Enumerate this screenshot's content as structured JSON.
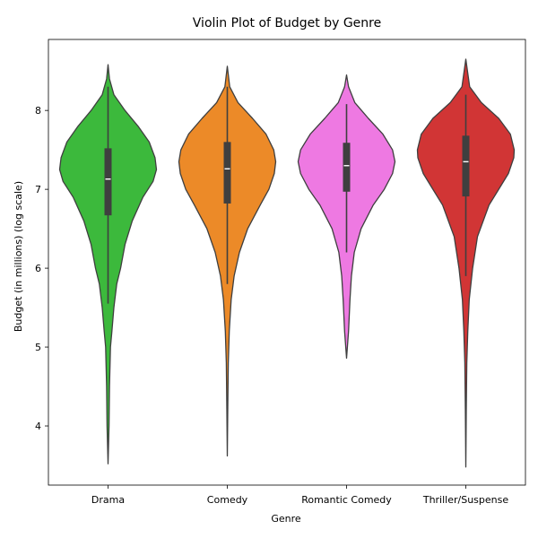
{
  "chart_data": {
    "type": "violin",
    "title": "Violin Plot of Budget by Genre",
    "xlabel": "Genre",
    "ylabel": "Budget (in millions) (log scale)",
    "ylim": [
      3.25,
      8.9
    ],
    "yticks": [
      4,
      5,
      6,
      7,
      8
    ],
    "grid": false,
    "categories": [
      "Drama",
      "Comedy",
      "Romantic Comedy",
      "Thriller/Suspense"
    ],
    "series": [
      {
        "name": "Drama",
        "color": "#3cb93c",
        "box": {
          "q1": 6.67,
          "median": 7.13,
          "q3": 7.52,
          "whisker_low": 5.55,
          "whisker_high": 8.3
        },
        "range": [
          3.52,
          8.58
        ],
        "density": [
          [
            3.52,
            0.0
          ],
          [
            4.0,
            0.02
          ],
          [
            4.5,
            0.03
          ],
          [
            5.0,
            0.05
          ],
          [
            5.2,
            0.08
          ],
          [
            5.5,
            0.12
          ],
          [
            5.8,
            0.18
          ],
          [
            6.0,
            0.26
          ],
          [
            6.3,
            0.35
          ],
          [
            6.6,
            0.5
          ],
          [
            6.9,
            0.72
          ],
          [
            7.1,
            0.93
          ],
          [
            7.25,
            1.0
          ],
          [
            7.4,
            0.97
          ],
          [
            7.6,
            0.85
          ],
          [
            7.8,
            0.62
          ],
          [
            8.0,
            0.35
          ],
          [
            8.2,
            0.12
          ],
          [
            8.4,
            0.03
          ],
          [
            8.58,
            0.0
          ]
        ]
      },
      {
        "name": "Comedy",
        "color": "#ec8a28",
        "box": {
          "q1": 6.82,
          "median": 7.26,
          "q3": 7.6,
          "whisker_low": 5.8,
          "whisker_high": 8.3
        },
        "range": [
          3.62,
          8.56
        ],
        "density": [
          [
            3.62,
            0.0
          ],
          [
            4.2,
            0.01
          ],
          [
            4.8,
            0.02
          ],
          [
            5.2,
            0.04
          ],
          [
            5.6,
            0.08
          ],
          [
            5.9,
            0.14
          ],
          [
            6.2,
            0.25
          ],
          [
            6.5,
            0.42
          ],
          [
            6.8,
            0.68
          ],
          [
            7.0,
            0.86
          ],
          [
            7.2,
            0.97
          ],
          [
            7.35,
            1.0
          ],
          [
            7.5,
            0.96
          ],
          [
            7.7,
            0.8
          ],
          [
            7.9,
            0.52
          ],
          [
            8.1,
            0.22
          ],
          [
            8.3,
            0.05
          ],
          [
            8.56,
            0.0
          ]
        ]
      },
      {
        "name": "Romantic Comedy",
        "color": "#ee79e2",
        "box": {
          "q1": 6.97,
          "median": 7.3,
          "q3": 7.59,
          "whisker_low": 6.2,
          "whisker_high": 8.08
        },
        "range": [
          4.86,
          8.45
        ],
        "density": [
          [
            4.86,
            0.0
          ],
          [
            5.2,
            0.04
          ],
          [
            5.6,
            0.07
          ],
          [
            5.9,
            0.1
          ],
          [
            6.2,
            0.16
          ],
          [
            6.5,
            0.3
          ],
          [
            6.8,
            0.55
          ],
          [
            7.0,
            0.78
          ],
          [
            7.2,
            0.95
          ],
          [
            7.35,
            1.0
          ],
          [
            7.5,
            0.95
          ],
          [
            7.7,
            0.75
          ],
          [
            7.9,
            0.45
          ],
          [
            8.1,
            0.17
          ],
          [
            8.3,
            0.04
          ],
          [
            8.45,
            0.0
          ]
        ]
      },
      {
        "name": "Thriller/Suspense",
        "color": "#d13535",
        "box": {
          "q1": 6.91,
          "median": 7.35,
          "q3": 7.68,
          "whisker_low": 5.9,
          "whisker_high": 8.2
        },
        "range": [
          3.48,
          8.65
        ],
        "density": [
          [
            3.48,
            0.0
          ],
          [
            4.2,
            0.01
          ],
          [
            4.8,
            0.02
          ],
          [
            5.2,
            0.04
          ],
          [
            5.6,
            0.07
          ],
          [
            6.0,
            0.14
          ],
          [
            6.4,
            0.24
          ],
          [
            6.8,
            0.48
          ],
          [
            7.0,
            0.68
          ],
          [
            7.2,
            0.88
          ],
          [
            7.4,
            0.99
          ],
          [
            7.5,
            1.0
          ],
          [
            7.7,
            0.92
          ],
          [
            7.9,
            0.68
          ],
          [
            8.1,
            0.32
          ],
          [
            8.3,
            0.08
          ],
          [
            8.65,
            0.0
          ]
        ]
      }
    ]
  }
}
